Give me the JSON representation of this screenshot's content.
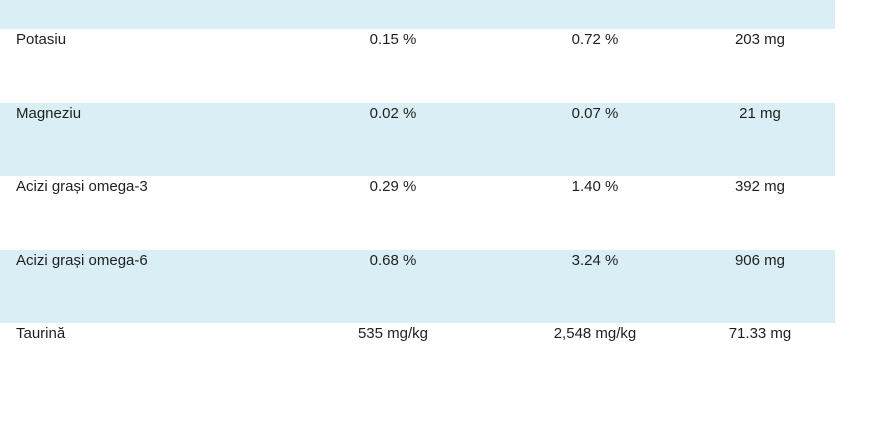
{
  "table": {
    "rows": [
      {
        "name": "Potasiu",
        "v1": "0.15 %",
        "v2": "0.72 %",
        "v3": "203 mg"
      },
      {
        "name": "Magneziu",
        "v1": "0.02 %",
        "v2": "0.07 %",
        "v3": "21 mg"
      },
      {
        "name": "Acizi grași omega-3",
        "v1": "0.29 %",
        "v2": "1.40 %",
        "v3": "392 mg"
      },
      {
        "name": "Acizi grași omega-6",
        "v1": "0.68 %",
        "v2": "3.24 %",
        "v3": "906 mg"
      },
      {
        "name": "Taurină",
        "v1": "535 mg/kg",
        "v2": "2,548 mg/kg",
        "v3": "71.33 mg"
      }
    ]
  },
  "colors": {
    "row_shade": "#d9eef5",
    "text": "#1f1f1f"
  }
}
